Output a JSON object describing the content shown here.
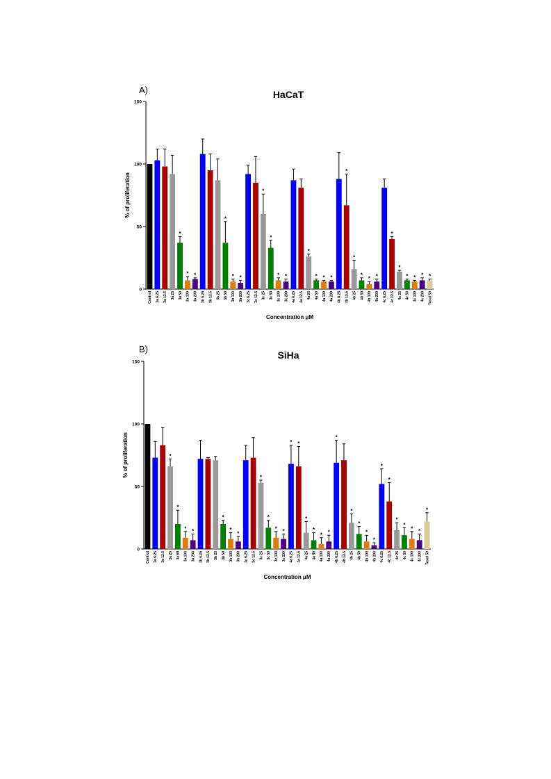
{
  "figure": {
    "panels": [
      {
        "panel_label": "A)",
        "title": "HaCaT",
        "ylabel": "% of proliferation",
        "xlabel": "Concentration μM"
      },
      {
        "panel_label": "B)",
        "title": "SiHa",
        "ylabel": "% of proliferation",
        "xlabel": "Concentration μM"
      }
    ]
  },
  "chart_data": [
    {
      "type": "bar",
      "title": "HaCaT",
      "xlabel": "Concentration μM",
      "ylabel": "% of proliferation",
      "ylim": [
        0,
        150
      ],
      "yticks": [
        0,
        50,
        100,
        150
      ],
      "grid": false,
      "significance_marker": "*",
      "bars": [
        {
          "label": "Control",
          "value": 100,
          "error": 0,
          "color": "#000000",
          "sig": false
        },
        {
          "label": "3a 6.25",
          "value": 103,
          "error": 9,
          "color": "#0000ff",
          "sig": false
        },
        {
          "label": "3a 12.5",
          "value": 98,
          "error": 14,
          "color": "#aa0000",
          "sig": false
        },
        {
          "label": "3a 25",
          "value": 92,
          "error": 15,
          "color": "#999999",
          "sig": false
        },
        {
          "label": "3a 50",
          "value": 37,
          "error": 5,
          "color": "#008000",
          "sig": true
        },
        {
          "label": "3a 100",
          "value": 7,
          "error": 3,
          "color": "#e07b10",
          "sig": true
        },
        {
          "label": "3a 200",
          "value": 8,
          "error": 1,
          "color": "#4b0082",
          "sig": true
        },
        {
          "label": "3b 6.25",
          "value": 108,
          "error": 12,
          "color": "#0000ff",
          "sig": false
        },
        {
          "label": "3b 12.5",
          "value": 95,
          "error": 13,
          "color": "#aa0000",
          "sig": false
        },
        {
          "label": "3b 25",
          "value": 87,
          "error": 17,
          "color": "#999999",
          "sig": false
        },
        {
          "label": "3b 50",
          "value": 37,
          "error": 17,
          "color": "#008000",
          "sig": true
        },
        {
          "label": "3b 100",
          "value": 6,
          "error": 2,
          "color": "#e07b10",
          "sig": true
        },
        {
          "label": "3b 200",
          "value": 5,
          "error": 2,
          "color": "#4b0082",
          "sig": true
        },
        {
          "label": "3c 6.25",
          "value": 92,
          "error": 7,
          "color": "#0000ff",
          "sig": false
        },
        {
          "label": "3c 12.5",
          "value": 85,
          "error": 21,
          "color": "#aa0000",
          "sig": false
        },
        {
          "label": "3c 25",
          "value": 60,
          "error": 16,
          "color": "#999999",
          "sig": true
        },
        {
          "label": "3c 50",
          "value": 33,
          "error": 6,
          "color": "#008000",
          "sig": true
        },
        {
          "label": "3c 100",
          "value": 7,
          "error": 2,
          "color": "#e07b10",
          "sig": true
        },
        {
          "label": "3c 200",
          "value": 6,
          "error": 2,
          "color": "#4b0082",
          "sig": true
        },
        {
          "label": "4a 6.25",
          "value": 87,
          "error": 9,
          "color": "#0000ff",
          "sig": false
        },
        {
          "label": "4a 12.5",
          "value": 81,
          "error": 7,
          "color": "#aa0000",
          "sig": false
        },
        {
          "label": "4a 25",
          "value": 26,
          "error": 2,
          "color": "#999999",
          "sig": true
        },
        {
          "label": "4a 50",
          "value": 7,
          "error": 1,
          "color": "#008000",
          "sig": true
        },
        {
          "label": "4a 100",
          "value": 6,
          "error": 1,
          "color": "#e07b10",
          "sig": true
        },
        {
          "label": "4a 200",
          "value": 6,
          "error": 1,
          "color": "#4b0082",
          "sig": true
        },
        {
          "label": "4b 6.25",
          "value": 88,
          "error": 21,
          "color": "#0000ff",
          "sig": false
        },
        {
          "label": "4b 12.5",
          "value": 67,
          "error": 25,
          "color": "#aa0000",
          "sig": true
        },
        {
          "label": "4b 25",
          "value": 16,
          "error": 7,
          "color": "#999999",
          "sig": true
        },
        {
          "label": "4b 50",
          "value": 7,
          "error": 2,
          "color": "#008000",
          "sig": true
        },
        {
          "label": "4b 100",
          "value": 4,
          "error": 2,
          "color": "#e07b10",
          "sig": true
        },
        {
          "label": "4b 200",
          "value": 6,
          "error": 2,
          "color": "#4b0082",
          "sig": true
        },
        {
          "label": "4c 6.25",
          "value": 81,
          "error": 7,
          "color": "#0000ff",
          "sig": false
        },
        {
          "label": "4c 12.5",
          "value": 40,
          "error": 2,
          "color": "#aa0000",
          "sig": true
        },
        {
          "label": "4c 25",
          "value": 14,
          "error": 1,
          "color": "#999999",
          "sig": true
        },
        {
          "label": "4c 50",
          "value": 7,
          "error": 1,
          "color": "#008000",
          "sig": true
        },
        {
          "label": "4c 100",
          "value": 6,
          "error": 1,
          "color": "#e07b10",
          "sig": true
        },
        {
          "label": "4c 200",
          "value": 7,
          "error": 2,
          "color": "#4b0082",
          "sig": true
        },
        {
          "label": "Taxol 50",
          "value": 7,
          "error": 1,
          "color": "#d9cc99",
          "sig": true
        }
      ]
    },
    {
      "type": "bar",
      "title": "SiHa",
      "xlabel": "Concentration μM",
      "ylabel": "% of proliferation",
      "ylim": [
        0,
        150
      ],
      "yticks": [
        0,
        50,
        100,
        150
      ],
      "grid": false,
      "significance_marker": "*",
      "bars": [
        {
          "label": "Control",
          "value": 100,
          "error": 0,
          "color": "#000000",
          "sig": false
        },
        {
          "label": "3a 6.25",
          "value": 73,
          "error": 13,
          "color": "#0000ff",
          "sig": false
        },
        {
          "label": "3a 12.5",
          "value": 83,
          "error": 14,
          "color": "#aa0000",
          "sig": false
        },
        {
          "label": "3a 25",
          "value": 66,
          "error": 6,
          "color": "#999999",
          "sig": true
        },
        {
          "label": "3a 50",
          "value": 20,
          "error": 11,
          "color": "#008000",
          "sig": true
        },
        {
          "label": "3a 100",
          "value": 9,
          "error": 5,
          "color": "#e07b10",
          "sig": true
        },
        {
          "label": "3a 200",
          "value": 7,
          "error": 5,
          "color": "#4b0082",
          "sig": true
        },
        {
          "label": "3b 6.25",
          "value": 72,
          "error": 15,
          "color": "#0000ff",
          "sig": false
        },
        {
          "label": "3b 12.5",
          "value": 72,
          "error": 1,
          "color": "#aa0000",
          "sig": false
        },
        {
          "label": "3b 25",
          "value": 71,
          "error": 3,
          "color": "#999999",
          "sig": false
        },
        {
          "label": "3b 50",
          "value": 20,
          "error": 3,
          "color": "#008000",
          "sig": true
        },
        {
          "label": "3b 100",
          "value": 8,
          "error": 5,
          "color": "#e07b10",
          "sig": true
        },
        {
          "label": "3b 200",
          "value": 6,
          "error": 4,
          "color": "#4b0082",
          "sig": true
        },
        {
          "label": "3c 6.25",
          "value": 71,
          "error": 12,
          "color": "#0000ff",
          "sig": false
        },
        {
          "label": "3c 12.5",
          "value": 73,
          "error": 16,
          "color": "#aa0000",
          "sig": false
        },
        {
          "label": "3c 25",
          "value": 53,
          "error": 2,
          "color": "#999999",
          "sig": true
        },
        {
          "label": "3c 50",
          "value": 17,
          "error": 6,
          "color": "#008000",
          "sig": true
        },
        {
          "label": "3c 100",
          "value": 9,
          "error": 5,
          "color": "#e07b10",
          "sig": true
        },
        {
          "label": "3c 200",
          "value": 8,
          "error": 4,
          "color": "#4b0082",
          "sig": true
        },
        {
          "label": "4a 6.25",
          "value": 68,
          "error": 15,
          "color": "#0000ff",
          "sig": true
        },
        {
          "label": "4a 12.5",
          "value": 66,
          "error": 16,
          "color": "#aa0000",
          "sig": true
        },
        {
          "label": "4a 25",
          "value": 13,
          "error": 9,
          "color": "#999999",
          "sig": true
        },
        {
          "label": "4a 50",
          "value": 7,
          "error": 6,
          "color": "#008000",
          "sig": true
        },
        {
          "label": "4a 100",
          "value": 4,
          "error": 5,
          "color": "#e07b10",
          "sig": true
        },
        {
          "label": "4a 200",
          "value": 6,
          "error": 5,
          "color": "#4b0082",
          "sig": true
        },
        {
          "label": "4b 6.25",
          "value": 69,
          "error": 18,
          "color": "#0000ff",
          "sig": true
        },
        {
          "label": "4b 12.5",
          "value": 71,
          "error": 13,
          "color": "#aa0000",
          "sig": false
        },
        {
          "label": "4b 25",
          "value": 21,
          "error": 7,
          "color": "#999999",
          "sig": true
        },
        {
          "label": "4b 50",
          "value": 12,
          "error": 6,
          "color": "#008000",
          "sig": true
        },
        {
          "label": "4b 100",
          "value": 6,
          "error": 5,
          "color": "#e07b10",
          "sig": true
        },
        {
          "label": "4b 200",
          "value": 3,
          "error": 2,
          "color": "#4b0082",
          "sig": true
        },
        {
          "label": "4c 6.25",
          "value": 52,
          "error": 12,
          "color": "#0000ff",
          "sig": true
        },
        {
          "label": "4c 12.5",
          "value": 38,
          "error": 15,
          "color": "#aa0000",
          "sig": true
        },
        {
          "label": "4c 25",
          "value": 15,
          "error": 6,
          "color": "#999999",
          "sig": true
        },
        {
          "label": "4c 50",
          "value": 11,
          "error": 6,
          "color": "#008000",
          "sig": true
        },
        {
          "label": "4c 100",
          "value": 8,
          "error": 6,
          "color": "#e07b10",
          "sig": true
        },
        {
          "label": "4c 200",
          "value": 7,
          "error": 5,
          "color": "#4b0082",
          "sig": true
        },
        {
          "label": "Taxol 50",
          "value": 22,
          "error": 7,
          "color": "#d9cc99",
          "sig": true
        }
      ]
    }
  ]
}
